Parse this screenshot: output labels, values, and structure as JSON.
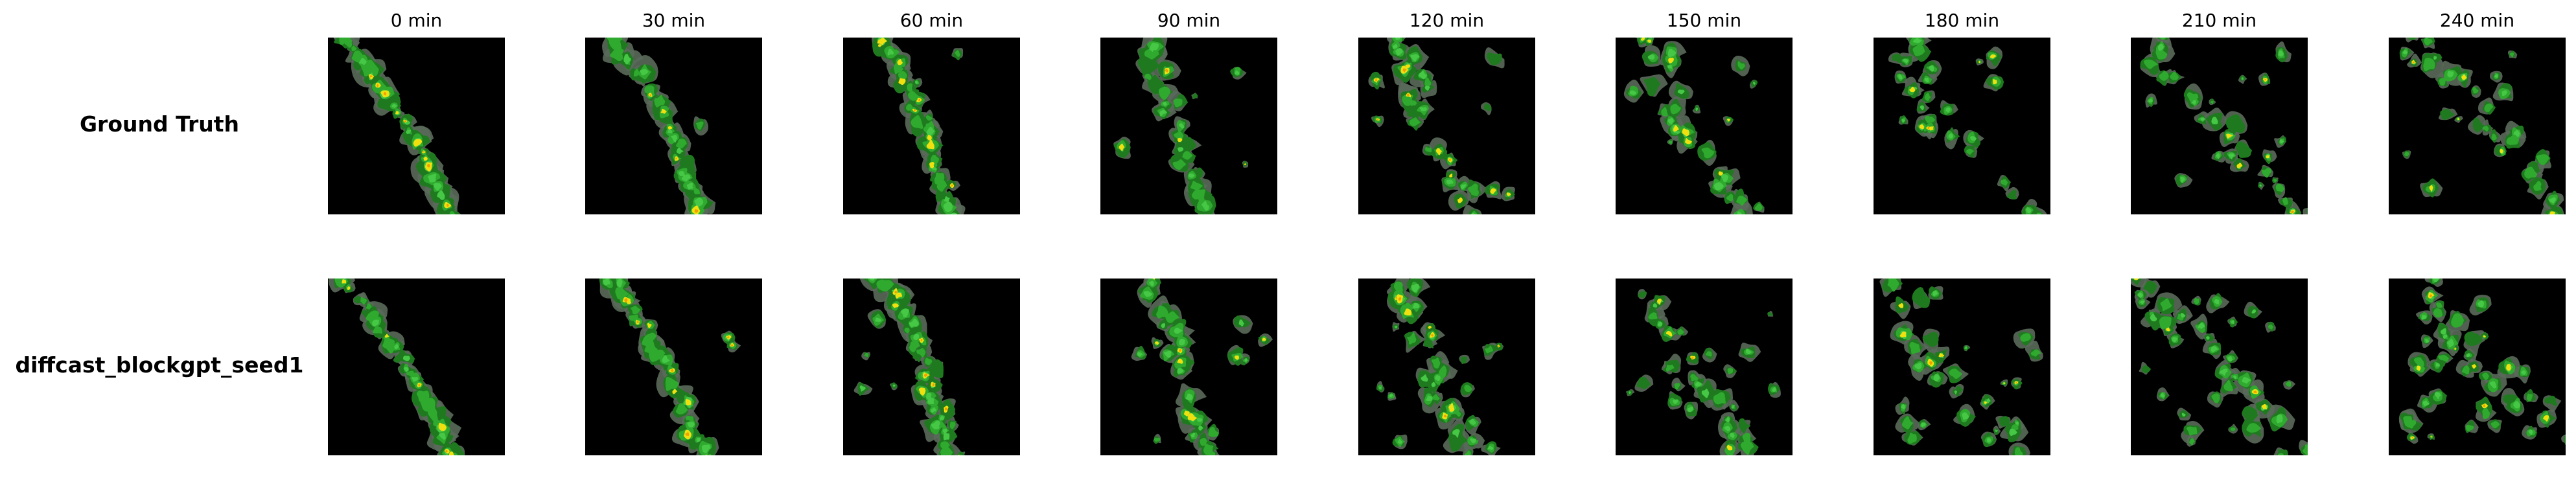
{
  "rows": [
    {
      "label": "Ground Truth"
    },
    {
      "label": "diffcast_blockgpt_seed1"
    }
  ],
  "columns": [
    {
      "label": "0 min"
    },
    {
      "label": "30 min"
    },
    {
      "label": "60 min"
    },
    {
      "label": "90 min"
    },
    {
      "label": "120 min"
    },
    {
      "label": "150 min"
    },
    {
      "label": "180 min"
    },
    {
      "label": "210 min"
    },
    {
      "label": "240 min"
    }
  ],
  "colors": {
    "background": "#000000",
    "gray": "#5a6a5a",
    "dark_green": "#1f7a1f",
    "green": "#2faa2f",
    "light_green": "#46c846",
    "yellow": "#f0e010",
    "orange": "#f0a000",
    "red": "#d02000"
  }
}
